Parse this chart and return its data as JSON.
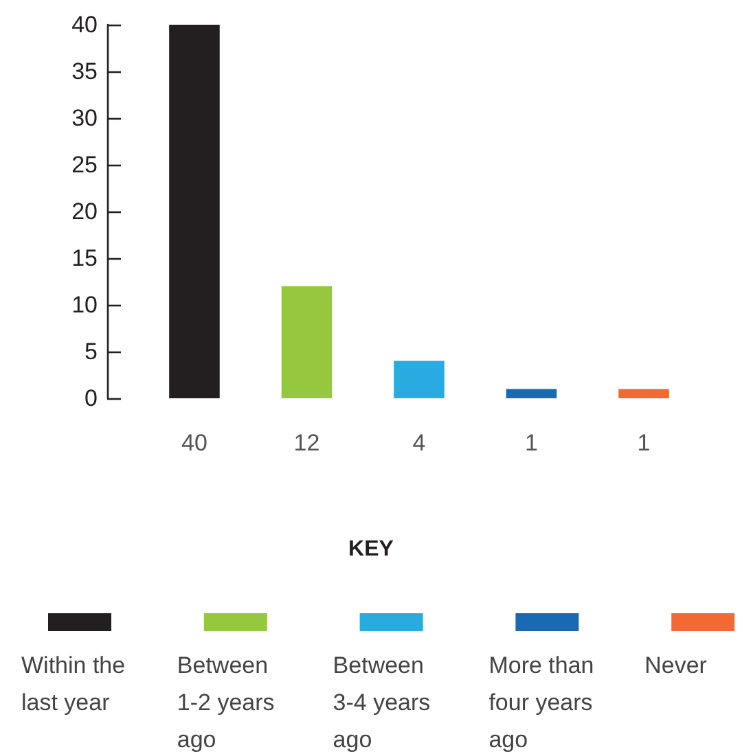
{
  "chart_data": {
    "type": "bar",
    "categories": [
      "40",
      "12",
      "4",
      "1",
      "1"
    ],
    "series": [
      {
        "name": "Within the last year",
        "color": "#231f20",
        "values": [
          40,
          null,
          null,
          null,
          null
        ]
      },
      {
        "name": "Between 1-2 years ago",
        "color": "#96c83f",
        "values": [
          null,
          12,
          null,
          null,
          null
        ]
      },
      {
        "name": "Between 3-4 years ago",
        "color": "#29abe2",
        "values": [
          null,
          null,
          4,
          null,
          null
        ]
      },
      {
        "name": "More than four years ago",
        "color": "#1a6ab3",
        "values": [
          null,
          null,
          null,
          1,
          null
        ]
      },
      {
        "name": "Never",
        "color": "#f26a32",
        "values": [
          null,
          null,
          null,
          null,
          1
        ]
      }
    ],
    "stacked": true,
    "ylim": [
      0,
      40
    ],
    "yticks": [
      0,
      5,
      10,
      15,
      20,
      25,
      30,
      35,
      40
    ],
    "grid": false,
    "legend": "bottom",
    "legend_title": "KEY"
  }
}
